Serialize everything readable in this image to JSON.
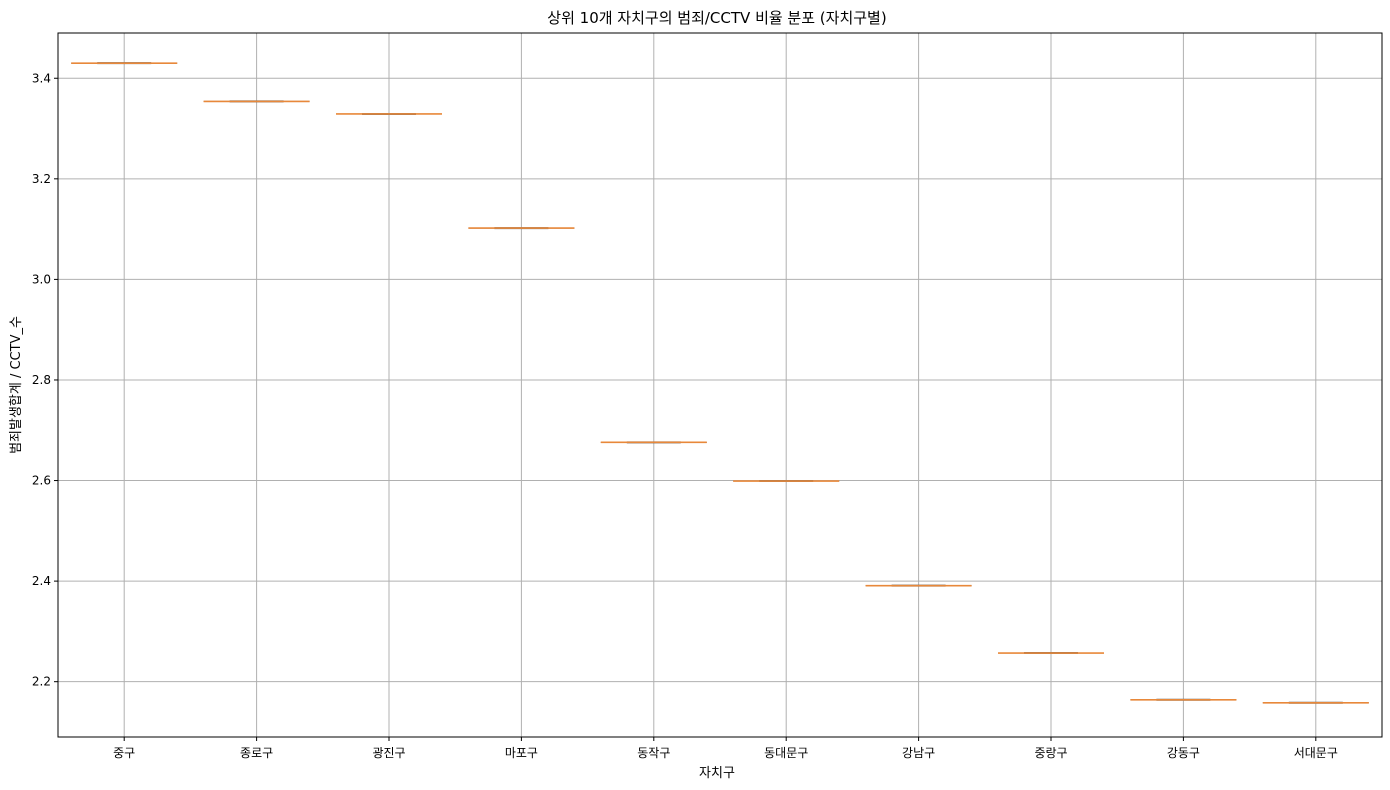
{
  "chart_data": {
    "type": "box",
    "title": "상위 10개 자치구의 범죄/CCTV 비율 분포 (자치구별)",
    "xlabel": "자치구",
    "ylabel": "범죄발생합계 / CCTV_수",
    "categories": [
      "중구",
      "종로구",
      "광진구",
      "마포구",
      "동작구",
      "동대문구",
      "강남구",
      "중랑구",
      "강동구",
      "서대문구"
    ],
    "values": [
      3.43,
      3.354,
      3.329,
      3.102,
      2.676,
      2.599,
      2.391,
      2.257,
      2.164,
      2.158
    ],
    "ylim": [
      2.09,
      3.49
    ],
    "yticks": [
      "2.2",
      "2.4",
      "2.6",
      "2.8",
      "3.0",
      "3.2",
      "3.4"
    ],
    "grid": true,
    "colors": {
      "median": "#e8883a",
      "box": "#666666",
      "grid": "#b0b0b0",
      "axis": "#000000"
    }
  }
}
